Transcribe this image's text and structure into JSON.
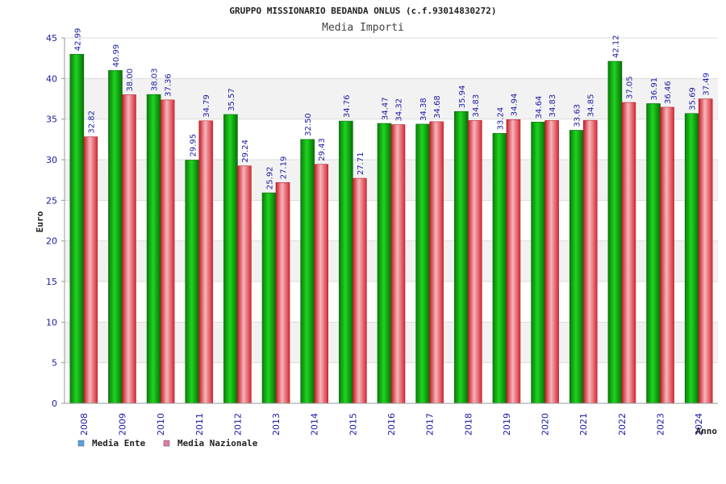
{
  "chart_data": {
    "type": "bar",
    "title": "GRUPPO MISSIONARIO BEDANDA ONLUS (c.f.93014830272)",
    "subtitle": "Media Importi",
    "xlabel": "Anno",
    "ylabel": "Euro",
    "ylim": [
      0,
      45
    ],
    "yticks": [
      "0",
      "5",
      "10",
      "15",
      "20",
      "25",
      "30",
      "35",
      "40",
      "45"
    ],
    "categories": [
      "2008",
      "2009",
      "2010",
      "2011",
      "2012",
      "2013",
      "2014",
      "2015",
      "2016",
      "2017",
      "2018",
      "2019",
      "2020",
      "2021",
      "2022",
      "2023",
      "2024"
    ],
    "series": [
      {
        "name": "Media Ente",
        "values": [
          42.99,
          40.99,
          38.03,
          29.95,
          35.57,
          25.92,
          32.5,
          34.76,
          34.47,
          34.38,
          35.94,
          33.24,
          34.64,
          33.63,
          42.12,
          36.91,
          35.69
        ],
        "labels": [
          "42.99",
          "40.99",
          "38.03",
          "29.95",
          "35.57",
          "25.92",
          "32.50",
          "34.76",
          "34.47",
          "34.38",
          "35.94",
          "33.24",
          "34.64",
          "33.63",
          "42.12",
          "36.91",
          "35.69"
        ],
        "color": "#0a9a0a",
        "legend_color": "#5aa0e6"
      },
      {
        "name": "Media Nazionale",
        "values": [
          32.82,
          38.0,
          37.36,
          34.79,
          29.24,
          27.19,
          29.43,
          27.71,
          34.32,
          34.68,
          34.83,
          34.94,
          34.83,
          34.85,
          37.05,
          36.46,
          37.49
        ],
        "labels": [
          "32.82",
          "38.00",
          "37.36",
          "34.79",
          "29.24",
          "27.19",
          "29.43",
          "27.71",
          "34.32",
          "34.68",
          "34.83",
          "34.94",
          "34.83",
          "34.85",
          "37.05",
          "36.46",
          "37.49"
        ],
        "color": "#e0323c",
        "legend_color": "#e07aa8"
      }
    ],
    "legend_position": "bottom-left",
    "grid": true
  }
}
